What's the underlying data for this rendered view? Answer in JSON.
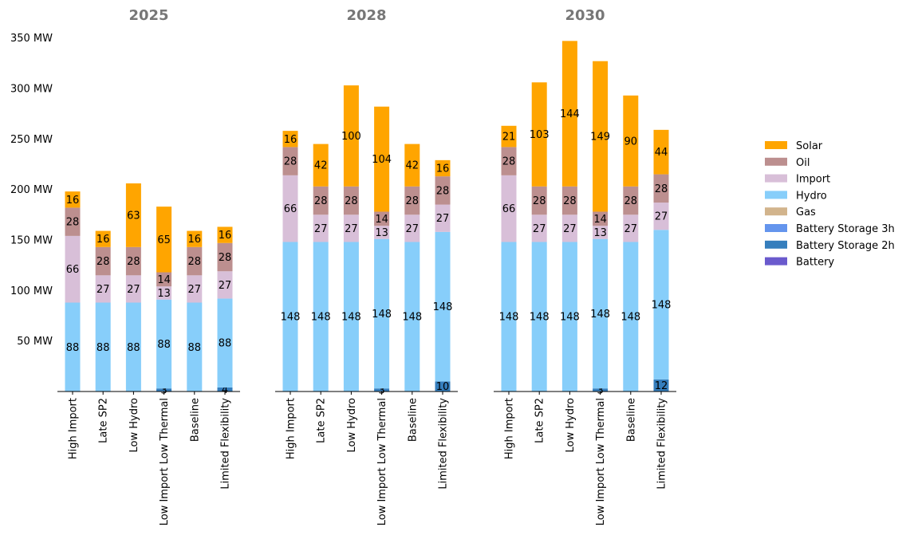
{
  "chart_data": {
    "type": "bar",
    "stacked": true,
    "y_unit": "MW",
    "ylim": [
      0,
      355
    ],
    "y_ticks": [
      50,
      100,
      150,
      200,
      250,
      300,
      350
    ],
    "y_tick_labels": [
      "50 MW",
      "100 MW",
      "150 MW",
      "200 MW",
      "250 MW",
      "300 MW",
      "350 MW"
    ],
    "grid": false,
    "legend_position": "right",
    "categories": [
      "High Import",
      "Late SP2",
      "Low Hydro",
      "Low Import Low Thermal",
      "Baseline",
      "Limited Flexibility"
    ],
    "stack_order": [
      "Battery Storage 2h",
      "Hydro",
      "Import",
      "Oil",
      "Solar"
    ],
    "legend_order": [
      "Solar",
      "Oil",
      "Import",
      "Hydro",
      "Gas",
      "Battery Storage 3h",
      "Battery Storage 2h",
      "Battery"
    ],
    "colors": {
      "Solar": "#ffa500",
      "Oil": "#bc8f8f",
      "Import": "#d8bfd8",
      "Hydro": "#87cefa",
      "Gas": "#d2b48c",
      "Battery Storage 3h": "#6495ed",
      "Battery Storage 2h": "#357ebd",
      "Battery": "#6a5acd"
    },
    "panels": [
      {
        "title": "2025",
        "series": [
          {
            "name": "Battery Storage 2h",
            "values": [
              0,
              0,
              0,
              3,
              0,
              4
            ]
          },
          {
            "name": "Hydro",
            "values": [
              88,
              88,
              88,
              88,
              88,
              88
            ]
          },
          {
            "name": "Import",
            "values": [
              66,
              27,
              27,
              13,
              27,
              27
            ]
          },
          {
            "name": "Oil",
            "values": [
              28,
              28,
              28,
              14,
              28,
              28
            ]
          },
          {
            "name": "Solar",
            "values": [
              16,
              16,
              63,
              65,
              16,
              16
            ]
          }
        ]
      },
      {
        "title": "2028",
        "series": [
          {
            "name": "Battery Storage 2h",
            "values": [
              0,
              0,
              0,
              3,
              0,
              10
            ]
          },
          {
            "name": "Hydro",
            "values": [
              148,
              148,
              148,
              148,
              148,
              148
            ]
          },
          {
            "name": "Import",
            "values": [
              66,
              27,
              27,
              13,
              27,
              27
            ]
          },
          {
            "name": "Oil",
            "values": [
              28,
              28,
              28,
              14,
              28,
              28
            ]
          },
          {
            "name": "Solar",
            "values": [
              16,
              42,
              100,
              104,
              42,
              16
            ]
          }
        ]
      },
      {
        "title": "2030",
        "series": [
          {
            "name": "Battery Storage 2h",
            "values": [
              0,
              0,
              0,
              3,
              0,
              12
            ]
          },
          {
            "name": "Hydro",
            "values": [
              148,
              148,
              148,
              148,
              148,
              148
            ]
          },
          {
            "name": "Import",
            "values": [
              66,
              27,
              27,
              13,
              27,
              27
            ]
          },
          {
            "name": "Oil",
            "values": [
              28,
              28,
              28,
              14,
              28,
              28
            ]
          },
          {
            "name": "Solar",
            "values": [
              21,
              103,
              144,
              149,
              90,
              44
            ]
          }
        ]
      }
    ]
  }
}
